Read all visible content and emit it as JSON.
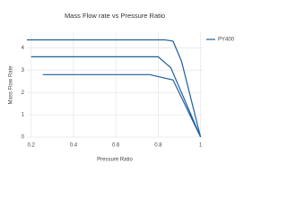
{
  "chart_data": {
    "type": "line",
    "title": "Mass Flow rate vs Pressure Ratio",
    "x_label": "Pressure Ratio",
    "y_label": "Mass Flow Rate",
    "x": [
      0.18,
      0.83,
      0.87,
      0.91,
      1,
      null,
      0.2,
      0.8,
      0.86,
      1,
      null,
      0.255,
      0.76,
      0.87,
      1
    ],
    "series": [
      {
        "name": "PY400",
        "color": "#1f5f9f",
        "values": [
          4.36,
          4.36,
          4.3,
          3.4,
          0,
          null,
          3.6,
          3.6,
          3.1,
          0,
          null,
          2.8,
          2.8,
          2.56,
          0
        ]
      }
    ],
    "xlim": [
      0.18,
      1.01
    ],
    "ylim": [
      0,
      4.7
    ],
    "xticks": [
      0.2,
      0.4,
      0.6,
      0.8,
      1
    ],
    "yticks": [
      0,
      1,
      2,
      3,
      4
    ],
    "grid": true,
    "legend": "top-right"
  }
}
